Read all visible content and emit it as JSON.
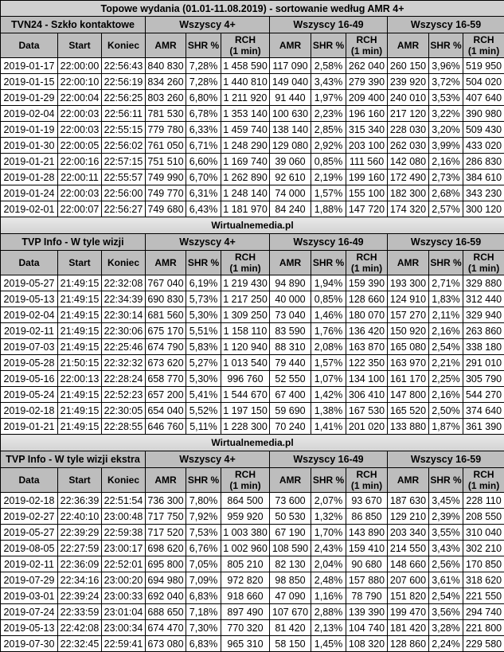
{
  "title": "Topowe wydania (01.01-11.08.2019) - sortowanie według AMR 4+",
  "source": "Wirtualnemedia.pl",
  "groups": [
    "Wszyscy 4+",
    "Wszyscy 16-49",
    "Wszyscy 16-59"
  ],
  "columns": {
    "data": "Data",
    "start": "Start",
    "end": "Koniec",
    "amr": "AMR",
    "shr": "SHR %",
    "rch_line1": "RCH",
    "rch_line2": "(1 min)"
  },
  "colors": {
    "header_bg": "#bdbdbd",
    "border": "#000000"
  },
  "tables": [
    {
      "program": "TVN24 - Szkło kontaktowe",
      "rows": [
        [
          "2019-01-17",
          "22:00:00",
          "22:56:43",
          "840 830",
          "7,28%",
          "1 458 590",
          "117 090",
          "2,58%",
          "262 040",
          "260 150",
          "3,96%",
          "519 950"
        ],
        [
          "2019-01-15",
          "22:00:10",
          "22:56:19",
          "834 260",
          "7,28%",
          "1 440 810",
          "149 040",
          "3,43%",
          "279 390",
          "239 920",
          "3,72%",
          "504 020"
        ],
        [
          "2019-01-29",
          "22:00:04",
          "22:56:25",
          "803 260",
          "6,80%",
          "1 211 920",
          "91 440",
          "1,97%",
          "209 400",
          "240 010",
          "3,53%",
          "407 640"
        ],
        [
          "2019-02-04",
          "22:00:03",
          "22:56:11",
          "781 530",
          "6,78%",
          "1 353 140",
          "100 630",
          "2,23%",
          "196 160",
          "217 120",
          "3,22%",
          "390 980"
        ],
        [
          "2019-01-19",
          "22:00:03",
          "22:55:15",
          "779 780",
          "6,33%",
          "1 459 740",
          "138 140",
          "2,85%",
          "315 340",
          "228 030",
          "3,20%",
          "509 430"
        ],
        [
          "2019-01-30",
          "22:00:05",
          "22:56:02",
          "761 050",
          "6,71%",
          "1 248 290",
          "129 080",
          "2,92%",
          "203 100",
          "262 030",
          "3,99%",
          "433 020"
        ],
        [
          "2019-01-21",
          "22:00:16",
          "22:57:15",
          "751 510",
          "6,60%",
          "1 169 740",
          "39 060",
          "0,85%",
          "111 560",
          "142 080",
          "2,16%",
          "286 830"
        ],
        [
          "2019-01-28",
          "22:00:11",
          "22:55:57",
          "749 990",
          "6,70%",
          "1 262 890",
          "92 610",
          "2,19%",
          "199 160",
          "172 490",
          "2,73%",
          "384 610"
        ],
        [
          "2019-01-24",
          "22:00:03",
          "22:56:00",
          "749 770",
          "6,31%",
          "1 248 140",
          "74 000",
          "1,57%",
          "155 100",
          "182 300",
          "2,68%",
          "343 230"
        ],
        [
          "2019-02-01",
          "22:00:07",
          "22:56:27",
          "749 680",
          "6,43%",
          "1 181 970",
          "84 240",
          "1,88%",
          "147 720",
          "174 320",
          "2,57%",
          "300 120"
        ]
      ]
    },
    {
      "program": "TVP Info - W tyle wizji",
      "rows": [
        [
          "2019-05-27",
          "21:49:15",
          "22:32:08",
          "767 040",
          "6,19%",
          "1 219 430",
          "94 890",
          "1,94%",
          "159 390",
          "193 300",
          "2,71%",
          "329 880"
        ],
        [
          "2019-05-13",
          "21:49:15",
          "22:34:39",
          "690 830",
          "5,73%",
          "1 217 250",
          "40 000",
          "0,85%",
          "128 660",
          "124 910",
          "1,83%",
          "312 440"
        ],
        [
          "2019-02-04",
          "21:49:15",
          "22:30:14",
          "681 560",
          "5,30%",
          "1 309 250",
          "73 040",
          "1,46%",
          "180 070",
          "157 270",
          "2,11%",
          "329 940"
        ],
        [
          "2019-02-11",
          "21:49:15",
          "22:30:06",
          "675 170",
          "5,51%",
          "1 158 110",
          "83 590",
          "1,76%",
          "136 420",
          "150 920",
          "2,16%",
          "263 860"
        ],
        [
          "2019-07-03",
          "21:49:15",
          "22:25:46",
          "674 790",
          "5,83%",
          "1 120 940",
          "88 310",
          "2,08%",
          "163 870",
          "165 080",
          "2,54%",
          "338 180"
        ],
        [
          "2019-05-28",
          "21:50:15",
          "22:32:32",
          "673 620",
          "5,27%",
          "1 013 540",
          "79 440",
          "1,57%",
          "122 350",
          "163 970",
          "2,21%",
          "291 010"
        ],
        [
          "2019-05-16",
          "22:00:13",
          "22:28:24",
          "658 770",
          "5,30%",
          "996 760",
          "52 550",
          "1,07%",
          "134 100",
          "161 170",
          "2,25%",
          "305 790"
        ],
        [
          "2019-05-24",
          "21:49:15",
          "22:52:23",
          "657 200",
          "5,41%",
          "1 544 670",
          "67 400",
          "1,42%",
          "306 410",
          "147 800",
          "2,16%",
          "544 270"
        ],
        [
          "2019-02-18",
          "21:49:15",
          "22:30:05",
          "654 040",
          "5,52%",
          "1 197 150",
          "59 690",
          "1,38%",
          "167 530",
          "165 520",
          "2,50%",
          "374 640"
        ],
        [
          "2019-01-21",
          "21:49:15",
          "22:28:55",
          "646 760",
          "5,11%",
          "1 228 300",
          "70 240",
          "1,41%",
          "201 020",
          "133 880",
          "1,87%",
          "361 390"
        ]
      ]
    },
    {
      "program": "TVP Info - W tyle wizji ekstra",
      "rows": [
        [
          "2019-02-18",
          "22:36:39",
          "22:51:54",
          "736 300",
          "7,80%",
          "864 500",
          "73 600",
          "2,07%",
          "93 670",
          "187 630",
          "3,45%",
          "228 110"
        ],
        [
          "2019-02-27",
          "22:40:10",
          "23:00:48",
          "717 750",
          "7,92%",
          "959 920",
          "50 530",
          "1,32%",
          "86 850",
          "129 210",
          "2,39%",
          "208 550"
        ],
        [
          "2019-05-27",
          "22:39:29",
          "22:59:38",
          "717 520",
          "7,53%",
          "1 003 380",
          "67 190",
          "1,70%",
          "143 890",
          "203 340",
          "3,55%",
          "310 040"
        ],
        [
          "2019-08-05",
          "22:27:59",
          "23:00:17",
          "698 620",
          "6,76%",
          "1 002 960",
          "108 590",
          "2,43%",
          "159 410",
          "214 550",
          "3,43%",
          "302 210"
        ],
        [
          "2019-02-11",
          "22:36:09",
          "22:52:01",
          "695 800",
          "7,05%",
          "805 210",
          "82 130",
          "2,04%",
          "90 680",
          "148 660",
          "2,56%",
          "170 850"
        ],
        [
          "2019-07-29",
          "22:34:16",
          "23:00:20",
          "694 980",
          "7,09%",
          "972 820",
          "98 850",
          "2,48%",
          "157 880",
          "207 600",
          "3,61%",
          "318 620"
        ],
        [
          "2019-03-01",
          "22:39:24",
          "23:00:33",
          "692 040",
          "6,83%",
          "918 660",
          "47 090",
          "1,16%",
          "78 790",
          "151 820",
          "2,54%",
          "221 550"
        ],
        [
          "2019-07-24",
          "22:33:59",
          "23:01:04",
          "688 650",
          "7,18%",
          "897 490",
          "107 670",
          "2,88%",
          "139 390",
          "199 470",
          "3,56%",
          "294 740"
        ],
        [
          "2019-05-13",
          "22:42:08",
          "23:00:34",
          "674 470",
          "7,30%",
          "770 320",
          "81 420",
          "2,13%",
          "104 740",
          "181 420",
          "3,28%",
          "221 800"
        ],
        [
          "2019-07-30",
          "22:32:45",
          "22:59:41",
          "673 080",
          "6,83%",
          "965 310",
          "58 150",
          "1,45%",
          "108 320",
          "128 860",
          "2,24%",
          "229 580"
        ]
      ]
    }
  ]
}
